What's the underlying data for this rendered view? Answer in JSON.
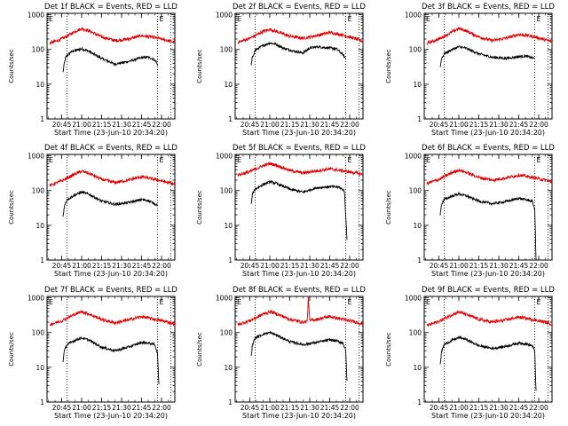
{
  "figure": {
    "background": "#ffffff",
    "event_color": "#000000",
    "lld_color": "#e00000"
  },
  "chart_data": [
    {
      "type": "line",
      "title": "Det 1f BLACK = Events, RED = LLD",
      "xlabel": "Start Time (23-Jun-10 20:34:20)",
      "ylabel": "Counts/sec",
      "x_tick_labels": [
        "20:45",
        "21:00",
        "21:15",
        "21:30",
        "21:45",
        "22:00"
      ],
      "x_ticks": [
        "20:45",
        "21:00",
        "21:15",
        "21:30",
        "21:45",
        "22:00"
      ],
      "xlim": [
        "20:34",
        "22:10"
      ],
      "y_tick_labels": [
        "1",
        "10",
        "100",
        "1000"
      ],
      "yscale": "log",
      "ylim": [
        1,
        1100
      ],
      "vertical_markers": [
        "20:49",
        "21:57",
        "22:07"
      ],
      "marker_labels": [
        "E",
        "E"
      ],
      "series": [
        {
          "name": "Events",
          "color": "#000000",
          "x": [
            "20:46",
            "20:47",
            "20:48",
            "20:52",
            "21:00",
            "21:05",
            "21:15",
            "21:25",
            "21:35",
            "21:45",
            "21:50",
            "21:53",
            "21:56",
            "21:57"
          ],
          "values": [
            22,
            40,
            60,
            85,
            105,
            90,
            55,
            38,
            45,
            58,
            60,
            55,
            45,
            35
          ]
        },
        {
          "name": "LLD",
          "color": "#e00000",
          "x": [
            "20:36",
            "20:45",
            "20:55",
            "21:00",
            "21:05",
            "21:15",
            "21:25",
            "21:35",
            "21:45",
            "21:55",
            "22:05",
            "22:10"
          ],
          "values": [
            150,
            200,
            330,
            400,
            350,
            230,
            180,
            200,
            250,
            220,
            180,
            160
          ]
        }
      ]
    },
    {
      "type": "line",
      "title": "Det 2f BLACK = Events, RED = LLD",
      "xlabel": "Start Time (23-Jun-10 20:34:20)",
      "ylabel": "Counts/sec",
      "x_tick_labels": [
        "20:45",
        "21:00",
        "21:15",
        "21:30",
        "21:45",
        "22:00"
      ],
      "x_ticks": [
        "20:45",
        "21:00",
        "21:15",
        "21:30",
        "21:45",
        "22:00"
      ],
      "xlim": [
        "20:34",
        "22:10"
      ],
      "y_tick_labels": [
        "1",
        "10",
        "100",
        "1000"
      ],
      "yscale": "log",
      "ylim": [
        1,
        1100
      ],
      "vertical_markers": [
        "20:49",
        "21:57",
        "22:07"
      ],
      "marker_labels": [
        "E",
        "E"
      ],
      "series": [
        {
          "name": "Events",
          "color": "#000000",
          "x": [
            "20:46",
            "20:47",
            "20:49",
            "20:55",
            "21:00",
            "21:05",
            "21:10",
            "21:18",
            "21:25",
            "21:30",
            "21:36",
            "21:40",
            "21:50",
            "21:55",
            "21:57"
          ],
          "values": [
            35,
            60,
            95,
            130,
            155,
            140,
            110,
            90,
            80,
            110,
            120,
            115,
            105,
            70,
            55
          ]
        },
        {
          "name": "LLD",
          "color": "#e00000",
          "x": [
            "20:36",
            "20:45",
            "20:55",
            "21:00",
            "21:05",
            "21:15",
            "21:25",
            "21:35",
            "21:45",
            "21:55",
            "22:05",
            "22:10"
          ],
          "values": [
            160,
            210,
            330,
            380,
            330,
            240,
            210,
            250,
            310,
            260,
            200,
            170
          ]
        }
      ]
    },
    {
      "type": "line",
      "title": "Det 3f BLACK = Events, RED = LLD",
      "xlabel": "Start Time (23-Jun-10 20:34:20)",
      "ylabel": "Counts/sec",
      "x_tick_labels": [
        "20:45",
        "21:00",
        "21:15",
        "21:30",
        "21:45",
        "22:00"
      ],
      "x_ticks": [
        "20:45",
        "21:00",
        "21:15",
        "21:30",
        "21:45",
        "22:00"
      ],
      "xlim": [
        "20:34",
        "22:10"
      ],
      "y_tick_labels": [
        "1",
        "10",
        "100",
        "1000"
      ],
      "yscale": "log",
      "ylim": [
        1,
        1100
      ],
      "vertical_markers": [
        "20:49",
        "21:57",
        "22:07"
      ],
      "marker_labels": [
        "E",
        "E"
      ],
      "series": [
        {
          "name": "Events",
          "color": "#000000",
          "x": [
            "20:46",
            "20:47",
            "20:49",
            "20:55",
            "21:00",
            "21:05",
            "21:15",
            "21:25",
            "21:35",
            "21:45",
            "21:50",
            "21:57"
          ],
          "values": [
            30,
            55,
            75,
            100,
            120,
            110,
            75,
            60,
            55,
            62,
            65,
            55
          ]
        },
        {
          "name": "LLD",
          "color": "#e00000",
          "x": [
            "20:36",
            "20:45",
            "20:55",
            "21:00",
            "21:05",
            "21:15",
            "21:25",
            "21:35",
            "21:45",
            "21:55",
            "22:05",
            "22:10"
          ],
          "values": [
            150,
            200,
            320,
            400,
            350,
            230,
            180,
            210,
            270,
            240,
            190,
            165
          ]
        }
      ]
    },
    {
      "type": "line",
      "title": "Det 4f BLACK = Events, RED = LLD",
      "xlabel": "Start Time (23-Jun-10 20:34:20)",
      "ylabel": "Counts/sec",
      "x_tick_labels": [
        "20:45",
        "21:00",
        "21:15",
        "21:30",
        "21:45",
        "22:00"
      ],
      "x_ticks": [
        "20:45",
        "21:00",
        "21:15",
        "21:30",
        "21:45",
        "22:00"
      ],
      "xlim": [
        "20:34",
        "22:10"
      ],
      "y_tick_labels": [
        "1",
        "10",
        "100",
        "1000"
      ],
      "yscale": "log",
      "ylim": [
        1,
        1100
      ],
      "vertical_markers": [
        "20:49",
        "21:57",
        "22:07"
      ],
      "marker_labels": [
        "E",
        "E"
      ],
      "series": [
        {
          "name": "Events",
          "color": "#000000",
          "x": [
            "20:46",
            "20:47",
            "20:49",
            "20:55",
            "21:00",
            "21:05",
            "21:15",
            "21:25",
            "21:35",
            "21:45",
            "21:50",
            "21:57"
          ],
          "values": [
            18,
            35,
            55,
            75,
            90,
            80,
            50,
            40,
            45,
            55,
            52,
            38
          ]
        },
        {
          "name": "LLD",
          "color": "#e00000",
          "x": [
            "20:36",
            "20:45",
            "20:55",
            "21:00",
            "21:05",
            "21:15",
            "21:25",
            "21:35",
            "21:45",
            "21:55",
            "22:05",
            "22:10"
          ],
          "values": [
            140,
            190,
            300,
            360,
            320,
            210,
            170,
            200,
            250,
            210,
            170,
            150
          ]
        }
      ]
    },
    {
      "type": "line",
      "title": "Det 5f BLACK = Events, RED = LLD",
      "xlabel": "Start Time (23-Jun-10 20:34:20)",
      "ylabel": "Counts/sec",
      "x_tick_labels": [
        "20:45",
        "21:00",
        "21:15",
        "21:30",
        "21:45",
        "22:00"
      ],
      "x_ticks": [
        "20:45",
        "21:00",
        "21:15",
        "21:30",
        "21:45",
        "22:00"
      ],
      "xlim": [
        "20:34",
        "22:10"
      ],
      "y_tick_labels": [
        "1",
        "10",
        "100",
        "1000"
      ],
      "yscale": "log",
      "ylim": [
        1,
        1100
      ],
      "vertical_markers": [
        "20:49",
        "21:57",
        "22:07"
      ],
      "marker_labels": [
        "E",
        "E"
      ],
      "series": [
        {
          "name": "Events",
          "color": "#000000",
          "x": [
            "20:46",
            "20:47",
            "20:49",
            "20:55",
            "21:00",
            "21:05",
            "21:15",
            "21:25",
            "21:35",
            "21:45",
            "21:52",
            "21:56",
            "21:57",
            "21:58"
          ],
          "values": [
            40,
            80,
            110,
            150,
            180,
            160,
            110,
            90,
            120,
            130,
            125,
            100,
            20,
            4
          ]
        },
        {
          "name": "LLD",
          "color": "#e00000",
          "x": [
            "20:36",
            "20:45",
            "20:55",
            "21:00",
            "21:05",
            "21:15",
            "21:25",
            "21:35",
            "21:45",
            "21:55",
            "22:05",
            "22:10"
          ],
          "values": [
            280,
            350,
            520,
            600,
            540,
            380,
            320,
            370,
            420,
            370,
            320,
            290
          ]
        }
      ]
    },
    {
      "type": "line",
      "title": "Det 6f BLACK = Events, RED = LLD",
      "xlabel": "Start Time (23-Jun-10 20:34:20)",
      "ylabel": "Counts/sec",
      "x_tick_labels": [
        "20:45",
        "21:00",
        "21:15",
        "21:30",
        "21:45",
        "22:00"
      ],
      "x_ticks": [
        "20:45",
        "21:00",
        "21:15",
        "21:30",
        "21:45",
        "22:00"
      ],
      "xlim": [
        "20:34",
        "22:10"
      ],
      "y_tick_labels": [
        "1",
        "10",
        "100",
        "1000"
      ],
      "yscale": "log",
      "ylim": [
        1,
        1100
      ],
      "vertical_markers": [
        "20:49",
        "21:57",
        "22:07"
      ],
      "marker_labels": [
        "E",
        "E"
      ],
      "series": [
        {
          "name": "Events",
          "color": "#000000",
          "x": [
            "20:46",
            "20:47",
            "20:49",
            "20:55",
            "21:00",
            "21:05",
            "21:15",
            "21:25",
            "21:35",
            "21:45",
            "21:50",
            "21:55",
            "21:57",
            "21:58"
          ],
          "values": [
            20,
            40,
            55,
            70,
            80,
            72,
            50,
            42,
            48,
            60,
            55,
            50,
            30,
            1
          ]
        },
        {
          "name": "LLD",
          "color": "#e00000",
          "x": [
            "20:36",
            "20:45",
            "20:55",
            "21:00",
            "21:05",
            "21:15",
            "21:25",
            "21:35",
            "21:45",
            "21:55",
            "22:05",
            "22:10"
          ],
          "values": [
            160,
            210,
            330,
            390,
            340,
            240,
            200,
            230,
            280,
            240,
            200,
            175
          ]
        }
      ]
    },
    {
      "type": "line",
      "title": "Det 7f BLACK = Events, RED = LLD",
      "xlabel": "Start Time (23-Jun-10 20:34:20)",
      "ylabel": "Counts/sec",
      "x_tick_labels": [
        "20:45",
        "21:00",
        "21:15",
        "21:30",
        "21:45",
        "22:00"
      ],
      "x_ticks": [
        "20:45",
        "21:00",
        "21:15",
        "21:30",
        "21:45",
        "22:00"
      ],
      "xlim": [
        "20:34",
        "22:10"
      ],
      "y_tick_labels": [
        "1",
        "10",
        "100",
        "1000"
      ],
      "yscale": "log",
      "ylim": [
        1,
        1100
      ],
      "vertical_markers": [
        "20:49",
        "21:57",
        "22:07"
      ],
      "marker_labels": [
        "E",
        "E"
      ],
      "series": [
        {
          "name": "Events",
          "color": "#000000",
          "x": [
            "20:46",
            "20:47",
            "20:49",
            "20:55",
            "21:00",
            "21:05",
            "21:15",
            "21:25",
            "21:35",
            "21:45",
            "21:50",
            "21:55",
            "21:57",
            "21:58"
          ],
          "values": [
            15,
            30,
            45,
            60,
            70,
            62,
            38,
            30,
            38,
            52,
            50,
            45,
            25,
            3
          ]
        },
        {
          "name": "LLD",
          "color": "#e00000",
          "x": [
            "20:36",
            "20:45",
            "20:55",
            "21:00",
            "21:05",
            "21:15",
            "21:25",
            "21:35",
            "21:45",
            "21:55",
            "22:05",
            "22:10"
          ],
          "values": [
            170,
            220,
            340,
            400,
            350,
            240,
            190,
            230,
            290,
            240,
            200,
            175
          ]
        }
      ]
    },
    {
      "type": "line",
      "title": "Det 8f BLACK = Events, RED = LLD",
      "xlabel": "Start Time (23-Jun-10 20:34:20)",
      "ylabel": "Counts/sec",
      "x_tick_labels": [
        "20:45",
        "21:00",
        "21:15",
        "21:30",
        "21:45",
        "22:00"
      ],
      "x_ticks": [
        "20:45",
        "21:00",
        "21:15",
        "21:30",
        "21:45",
        "22:00"
      ],
      "xlim": [
        "20:34",
        "22:10"
      ],
      "y_tick_labels": [
        "1",
        "10",
        "100",
        "1000"
      ],
      "yscale": "log",
      "ylim": [
        1,
        1100
      ],
      "vertical_markers": [
        "20:49",
        "21:57",
        "22:07"
      ],
      "marker_labels": [
        "E",
        "E"
      ],
      "series": [
        {
          "name": "Events",
          "color": "#000000",
          "x": [
            "20:46",
            "20:47",
            "20:49",
            "20:55",
            "21:00",
            "21:05",
            "21:15",
            "21:25",
            "21:35",
            "21:45",
            "21:50",
            "21:55",
            "21:57",
            "21:58"
          ],
          "values": [
            20,
            45,
            70,
            90,
            100,
            85,
            55,
            45,
            52,
            62,
            58,
            50,
            30,
            4
          ]
        },
        {
          "name": "LLD",
          "color": "#e00000",
          "x": [
            "20:36",
            "20:45",
            "20:55",
            "21:00",
            "21:05",
            "21:15",
            "21:25",
            "21:28",
            "21:29",
            "21:30",
            "21:35",
            "21:45",
            "21:55",
            "22:05",
            "22:10"
          ],
          "values": [
            170,
            220,
            340,
            400,
            350,
            240,
            200,
            210,
            1000,
            220,
            240,
            290,
            240,
            200,
            175
          ]
        }
      ]
    },
    {
      "type": "line",
      "title": "Det 9f BLACK = Events, RED = LLD",
      "xlabel": "Start Time (23-Jun-10 20:34:20)",
      "ylabel": "Counts/sec",
      "x_tick_labels": [
        "20:45",
        "21:00",
        "21:15",
        "21:30",
        "21:45",
        "22:00"
      ],
      "x_ticks": [
        "20:45",
        "21:00",
        "21:15",
        "21:30",
        "21:45",
        "22:00"
      ],
      "xlim": [
        "20:34",
        "22:10"
      ],
      "y_tick_labels": [
        "1",
        "10",
        "100",
        "1000"
      ],
      "yscale": "log",
      "ylim": [
        1,
        1100
      ],
      "vertical_markers": [
        "20:49",
        "21:57",
        "22:07"
      ],
      "marker_labels": [
        "E",
        "E"
      ],
      "series": [
        {
          "name": "Events",
          "color": "#000000",
          "x": [
            "20:46",
            "20:47",
            "20:49",
            "20:55",
            "21:00",
            "21:05",
            "21:15",
            "21:25",
            "21:35",
            "21:45",
            "21:50",
            "21:55",
            "21:57",
            "21:58"
          ],
          "values": [
            12,
            28,
            45,
            60,
            72,
            65,
            42,
            35,
            40,
            50,
            48,
            42,
            30,
            2
          ]
        },
        {
          "name": "LLD",
          "color": "#e00000",
          "x": [
            "20:36",
            "20:45",
            "20:55",
            "21:00",
            "21:05",
            "21:15",
            "21:25",
            "21:35",
            "21:45",
            "21:55",
            "22:05",
            "22:10"
          ],
          "values": [
            160,
            210,
            330,
            390,
            340,
            240,
            200,
            230,
            280,
            240,
            200,
            175
          ]
        }
      ]
    }
  ]
}
